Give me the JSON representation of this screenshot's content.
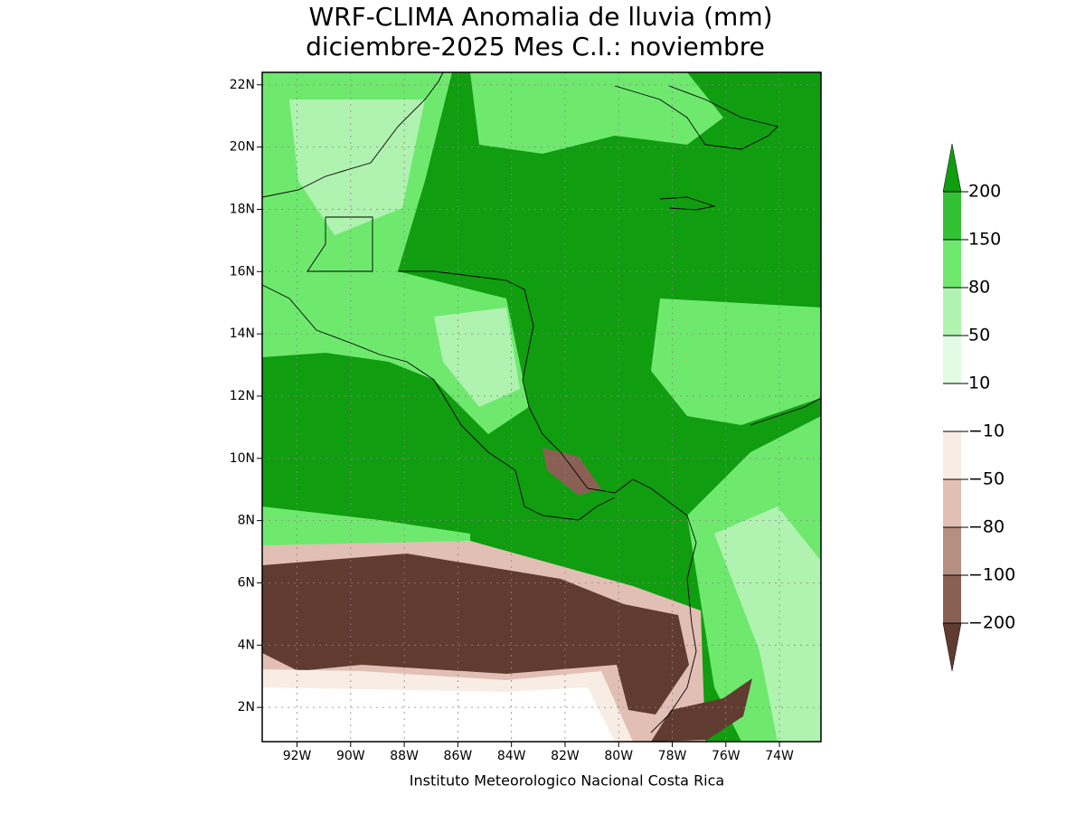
{
  "title": "WRF-CLIMA Anomalia de lluvia (mm)",
  "subtitle": "diciembre-2025 Mes C.I.: noviembre",
  "footer": "Instituto Meteorologico Nacional Costa Rica",
  "map": {
    "xlim": [
      -93.3,
      -72.45
    ],
    "ylim": [
      0.9,
      22.4
    ],
    "grid": true,
    "xticks": [
      {
        "value": -92,
        "label": "92W"
      },
      {
        "value": -90,
        "label": "90W"
      },
      {
        "value": -88,
        "label": "88W"
      },
      {
        "value": -86,
        "label": "86W"
      },
      {
        "value": -84,
        "label": "84W"
      },
      {
        "value": -82,
        "label": "82W"
      },
      {
        "value": -80,
        "label": "80W"
      },
      {
        "value": -78,
        "label": "78W"
      },
      {
        "value": -76,
        "label": "76W"
      },
      {
        "value": -74,
        "label": "74W"
      }
    ],
    "yticks": [
      {
        "value": 2,
        "label": "2N"
      },
      {
        "value": 4,
        "label": "4N"
      },
      {
        "value": 6,
        "label": "6N"
      },
      {
        "value": 8,
        "label": "8N"
      },
      {
        "value": 10,
        "label": "10N"
      },
      {
        "value": 12,
        "label": "12N"
      },
      {
        "value": 14,
        "label": "14N"
      },
      {
        "value": 16,
        "label": "16N"
      },
      {
        "value": 18,
        "label": "18N"
      },
      {
        "value": 20,
        "label": "20N"
      },
      {
        "value": 22,
        "label": "22N"
      }
    ]
  },
  "colorbar": {
    "levels": [
      {
        "value": -200,
        "label": "−200"
      },
      {
        "value": -100,
        "label": "−100"
      },
      {
        "value": -80,
        "label": "−80"
      },
      {
        "value": -50,
        "label": "−50"
      },
      {
        "value": -10,
        "label": "−10"
      },
      10,
      50,
      80,
      150,
      200
    ],
    "colors": [
      "#603b30",
      "#8a6054",
      "#b58f82",
      "#e2bfb4",
      "#f7ede4",
      "#ffffff",
      "#e3fbe3",
      "#b0f2b0",
      "#6ee96e",
      "#33c133",
      "#109d10"
    ]
  }
}
